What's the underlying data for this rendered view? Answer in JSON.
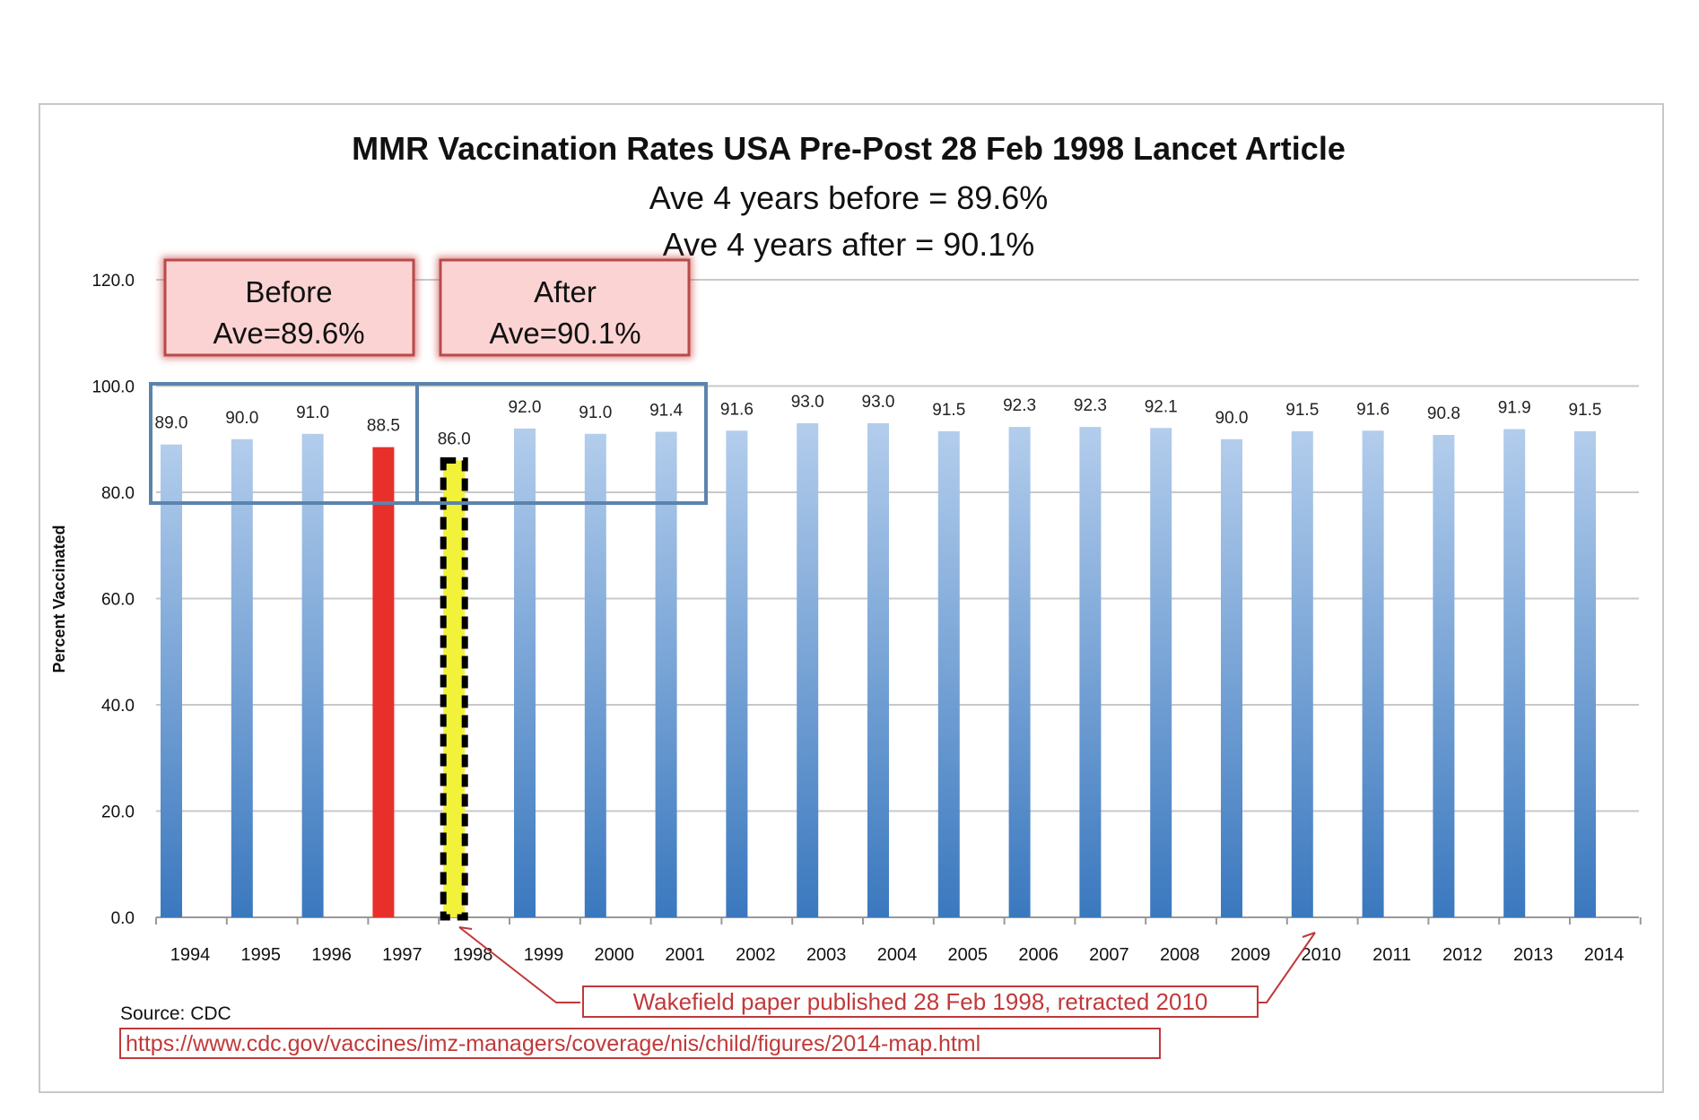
{
  "chart_data": {
    "type": "bar",
    "title": "MMR Vaccination Rates USA Pre-Post 28 Feb 1998 Lancet Article",
    "subtitles": [
      "Ave 4 years before = 89.6%",
      "Ave 4 years after = 90.1%"
    ],
    "ylabel": "Percent Vaccinated",
    "xlabel": "",
    "ylim": [
      0,
      120
    ],
    "yticks": [
      "0.0",
      "20.0",
      "40.0",
      "60.0",
      "80.0",
      "100.0",
      "120.0"
    ],
    "grid": true,
    "categories": [
      "1994",
      "1995",
      "1996",
      "1997",
      "1998",
      "1999",
      "2000",
      "2001",
      "2002",
      "2003",
      "2004",
      "2005",
      "2006",
      "2007",
      "2008",
      "2009",
      "2010",
      "2011",
      "2012",
      "2013",
      "2014"
    ],
    "values": [
      89.0,
      90.0,
      91.0,
      88.5,
      86.0,
      92.0,
      91.0,
      91.4,
      91.6,
      93.0,
      93.0,
      91.5,
      92.3,
      92.3,
      92.1,
      90.0,
      91.5,
      91.6,
      90.8,
      91.9,
      91.5
    ],
    "value_labels": [
      "89.0",
      "90.0",
      "91.0",
      "88.5",
      "86.0",
      "92.0",
      "91.0",
      "91.4",
      "91.6",
      "93.0",
      "93.0",
      "91.5",
      "92.3",
      "92.3",
      "92.1",
      "90.0",
      "91.5",
      "91.6",
      "90.8",
      "91.9",
      "91.5"
    ],
    "highlight": {
      "1997": "#e8302a",
      "1998": "#f2f23a"
    },
    "colors": {
      "bar_top": "#b3cdec",
      "bar_bottom": "#3a78be",
      "box_blue": "#5b84ad",
      "annot_red": "#c0393b"
    },
    "annotations": {
      "before_box": [
        "Before",
        "Ave=89.6%"
      ],
      "after_box": [
        "After",
        "Ave=90.1%"
      ],
      "wakefield": "Wakefield paper published 28 Feb 1998, retracted 2010",
      "source": "Source: CDC",
      "url": "https://www.cdc.gov/vaccines/imz-managers/coverage/nis/child/figures/2014-map.html"
    }
  }
}
